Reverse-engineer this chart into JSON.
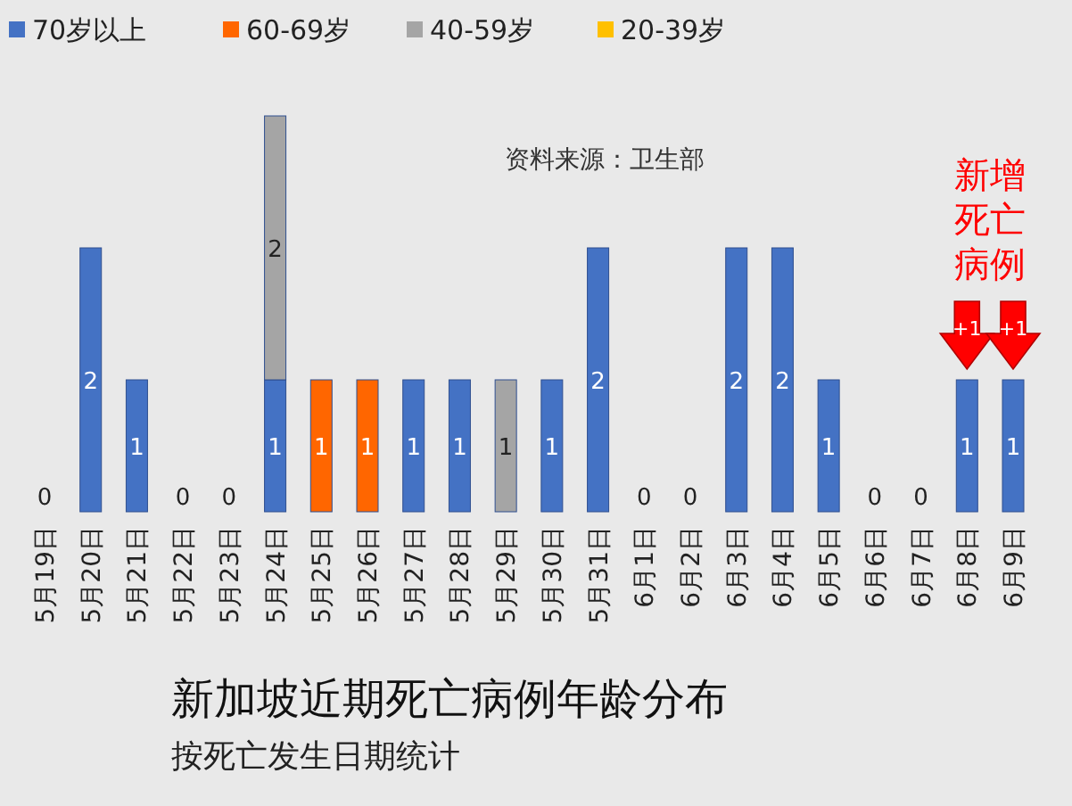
{
  "chart_data": {
    "type": "bar",
    "stacked": true,
    "title": "新加坡近期死亡病例年龄分布",
    "subtitle": "按死亡发生日期统计",
    "categories": [
      "5月19日",
      "5月20日",
      "5月21日",
      "5月22日",
      "5月23日",
      "5月24日",
      "5月25日",
      "5月26日",
      "5月27日",
      "5月28日",
      "5月29日",
      "5月30日",
      "5月31日",
      "6月1日",
      "6月2日",
      "6月3日",
      "6月4日",
      "6月5日",
      "6月6日",
      "6月7日",
      "6月8日",
      "6月9日"
    ],
    "series": [
      {
        "name": "70岁以上",
        "color": "#4472c4",
        "values": [
          0,
          2,
          1,
          0,
          0,
          1,
          0,
          0,
          1,
          1,
          0,
          1,
          2,
          0,
          0,
          2,
          2,
          1,
          0,
          0,
          1,
          1
        ],
        "value_labels": [
          "0",
          "2",
          "1",
          "0",
          "0",
          "1",
          null,
          null,
          "1",
          "1",
          null,
          "1",
          "2",
          "0",
          "0",
          "2",
          "2",
          "1",
          "0",
          "0",
          "1",
          "1"
        ]
      },
      {
        "name": "60-69岁",
        "color": "#ff6600",
        "values": [
          0,
          0,
          0,
          0,
          0,
          0,
          1,
          1,
          0,
          0,
          0,
          0,
          0,
          0,
          0,
          0,
          0,
          0,
          0,
          0,
          0,
          0
        ],
        "value_labels": [
          null,
          null,
          null,
          null,
          null,
          null,
          "1",
          "1",
          null,
          null,
          null,
          null,
          null,
          null,
          null,
          null,
          null,
          null,
          null,
          null,
          null,
          null
        ]
      },
      {
        "name": "40-59岁",
        "color": "#a5a5a5",
        "values": [
          0,
          0,
          0,
          0,
          0,
          2,
          0,
          0,
          0,
          0,
          1,
          0,
          0,
          0,
          0,
          0,
          0,
          0,
          0,
          0,
          0,
          0
        ],
        "value_labels": [
          null,
          null,
          null,
          null,
          null,
          "2",
          null,
          null,
          null,
          null,
          "1",
          null,
          null,
          null,
          null,
          null,
          null,
          null,
          null,
          null,
          null,
          null
        ]
      },
      {
        "name": "20-39岁",
        "color": "#ffc000",
        "values": [
          0,
          0,
          0,
          0,
          0,
          0,
          0,
          0,
          0,
          0,
          0,
          0,
          0,
          0,
          0,
          0,
          0,
          0,
          0,
          0,
          0,
          0
        ]
      }
    ],
    "legend": "top left",
    "annotations": [
      {
        "text": "资料来源：卫生部"
      },
      "新增死亡病例",
      {
        "text": "+1",
        "x": "6月8日",
        "y": 1
      },
      {
        "text": "+1",
        "x": "6月9日",
        "y": 1
      }
    ]
  }
}
